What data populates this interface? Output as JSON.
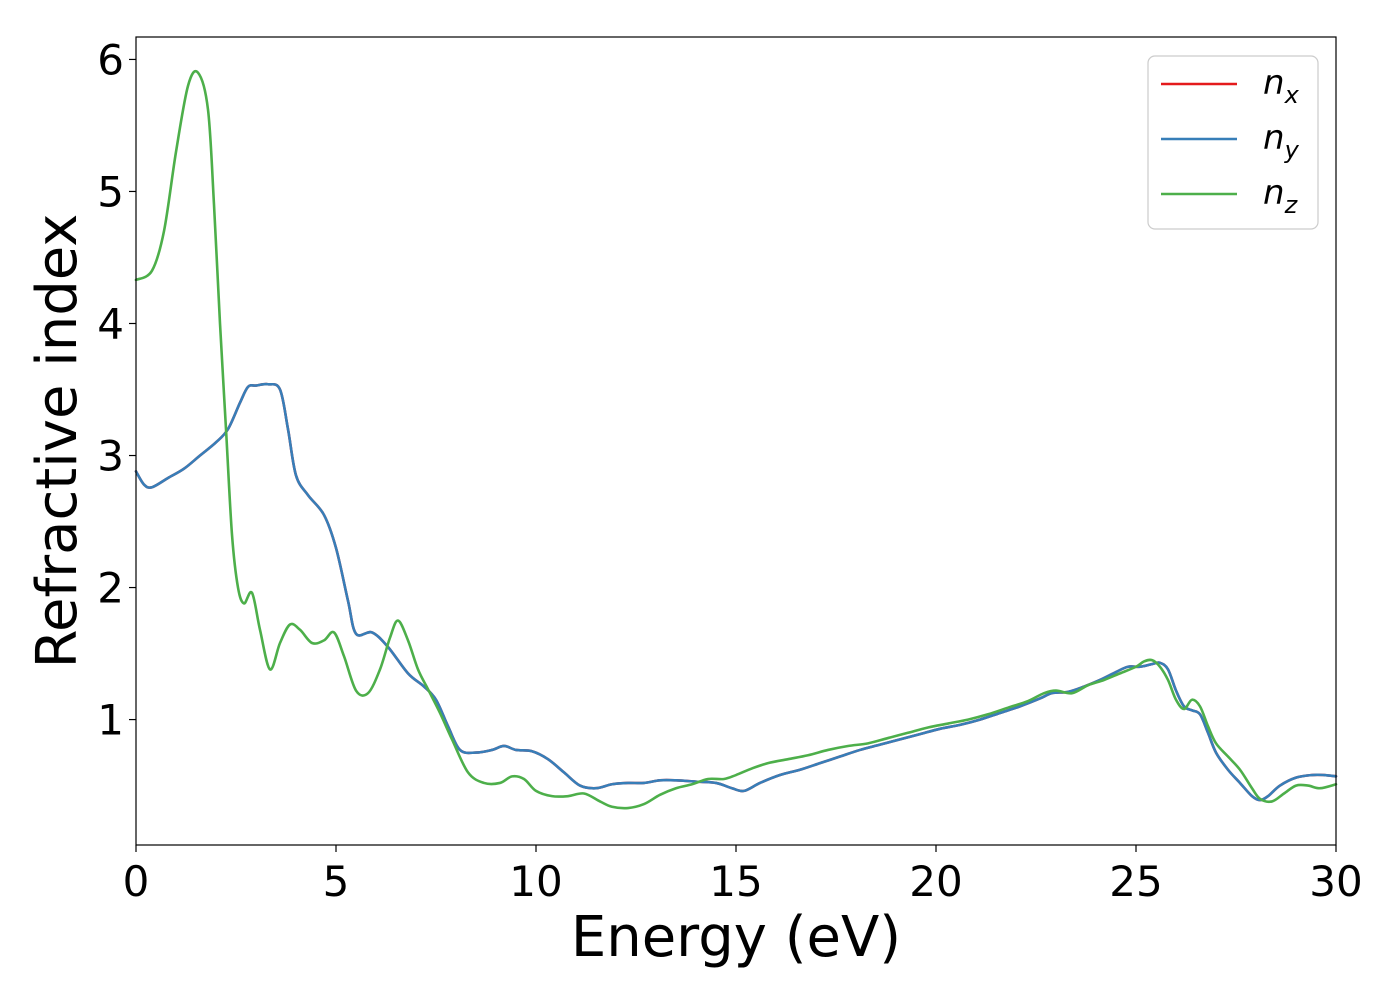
{
  "chart_data": {
    "type": "line",
    "title": "",
    "xlabel": "Energy (eV)",
    "ylabel": "Refractive index",
    "xlim": [
      0,
      30
    ],
    "ylim": [
      0.05,
      6.17
    ],
    "xticks": [
      0,
      5,
      10,
      15,
      20,
      25,
      30
    ],
    "yticks": [
      1,
      2,
      3,
      4,
      5,
      6
    ],
    "grid": false,
    "legend_position": "top-right",
    "series": [
      {
        "name": "n",
        "subscript": "x",
        "color": "#e41a1c",
        "x": [
          0,
          0.2,
          0.4,
          0.8,
          1.2,
          1.6,
          2.0,
          2.3,
          2.6,
          2.8,
          3.0,
          3.3,
          3.6,
          3.8,
          4.0,
          4.3,
          4.7,
          5.0,
          5.3,
          5.5,
          5.9,
          6.3,
          6.8,
          7.2,
          7.5,
          7.8,
          8.1,
          8.5,
          8.9,
          9.2,
          9.5,
          9.9,
          10.3,
          10.7,
          11.1,
          11.5,
          11.9,
          12.3,
          12.7,
          13.1,
          13.5,
          14.0,
          14.5,
          14.9,
          15.2,
          15.6,
          16.1,
          16.6,
          17.1,
          17.6,
          18.1,
          18.6,
          19.1,
          19.6,
          20.1,
          20.6,
          21.1,
          21.6,
          22.1,
          22.6,
          22.9,
          23.3,
          23.7,
          24.1,
          24.5,
          24.8,
          25.1,
          25.4,
          25.6,
          25.8,
          26.0,
          26.2,
          26.4,
          26.6,
          26.8,
          27.0,
          27.3,
          27.6,
          27.9,
          28.1,
          28.3,
          28.6,
          29.0,
          29.4,
          29.7,
          30.0
        ],
        "values": [
          2.88,
          2.78,
          2.76,
          2.83,
          2.9,
          3.0,
          3.1,
          3.2,
          3.4,
          3.52,
          3.53,
          3.54,
          3.5,
          3.2,
          2.85,
          2.7,
          2.55,
          2.3,
          1.9,
          1.65,
          1.66,
          1.55,
          1.35,
          1.25,
          1.15,
          0.95,
          0.77,
          0.75,
          0.77,
          0.8,
          0.77,
          0.76,
          0.7,
          0.6,
          0.5,
          0.48,
          0.51,
          0.52,
          0.52,
          0.54,
          0.54,
          0.53,
          0.52,
          0.48,
          0.46,
          0.52,
          0.58,
          0.62,
          0.67,
          0.72,
          0.77,
          0.81,
          0.85,
          0.89,
          0.93,
          0.96,
          1.0,
          1.05,
          1.1,
          1.16,
          1.2,
          1.21,
          1.25,
          1.3,
          1.36,
          1.4,
          1.4,
          1.42,
          1.43,
          1.38,
          1.22,
          1.1,
          1.07,
          1.04,
          0.9,
          0.75,
          0.62,
          0.52,
          0.42,
          0.39,
          0.42,
          0.5,
          0.56,
          0.58,
          0.58,
          0.57
        ]
      },
      {
        "name": "n",
        "subscript": "y",
        "color": "#377eb8",
        "x": [
          0,
          0.2,
          0.4,
          0.8,
          1.2,
          1.6,
          2.0,
          2.3,
          2.6,
          2.8,
          3.0,
          3.3,
          3.6,
          3.8,
          4.0,
          4.3,
          4.7,
          5.0,
          5.3,
          5.5,
          5.9,
          6.3,
          6.8,
          7.2,
          7.5,
          7.8,
          8.1,
          8.5,
          8.9,
          9.2,
          9.5,
          9.9,
          10.3,
          10.7,
          11.1,
          11.5,
          11.9,
          12.3,
          12.7,
          13.1,
          13.5,
          14.0,
          14.5,
          14.9,
          15.2,
          15.6,
          16.1,
          16.6,
          17.1,
          17.6,
          18.1,
          18.6,
          19.1,
          19.6,
          20.1,
          20.6,
          21.1,
          21.6,
          22.1,
          22.6,
          22.9,
          23.3,
          23.7,
          24.1,
          24.5,
          24.8,
          25.1,
          25.4,
          25.6,
          25.8,
          26.0,
          26.2,
          26.4,
          26.6,
          26.8,
          27.0,
          27.3,
          27.6,
          27.9,
          28.1,
          28.3,
          28.6,
          29.0,
          29.4,
          29.7,
          30.0
        ],
        "values": [
          2.88,
          2.78,
          2.76,
          2.83,
          2.9,
          3.0,
          3.1,
          3.2,
          3.4,
          3.52,
          3.53,
          3.54,
          3.5,
          3.2,
          2.85,
          2.7,
          2.55,
          2.3,
          1.9,
          1.65,
          1.66,
          1.55,
          1.35,
          1.25,
          1.15,
          0.95,
          0.77,
          0.75,
          0.77,
          0.8,
          0.77,
          0.76,
          0.7,
          0.6,
          0.5,
          0.48,
          0.51,
          0.52,
          0.52,
          0.54,
          0.54,
          0.53,
          0.52,
          0.48,
          0.46,
          0.52,
          0.58,
          0.62,
          0.67,
          0.72,
          0.77,
          0.81,
          0.85,
          0.89,
          0.93,
          0.96,
          1.0,
          1.05,
          1.1,
          1.16,
          1.2,
          1.21,
          1.25,
          1.3,
          1.36,
          1.4,
          1.4,
          1.42,
          1.43,
          1.38,
          1.22,
          1.1,
          1.07,
          1.04,
          0.9,
          0.75,
          0.62,
          0.52,
          0.42,
          0.39,
          0.42,
          0.5,
          0.56,
          0.58,
          0.58,
          0.57
        ]
      },
      {
        "name": "n",
        "subscript": "z",
        "color": "#4daf4a",
        "x": [
          0,
          0.4,
          0.7,
          1.0,
          1.3,
          1.55,
          1.8,
          1.95,
          2.1,
          2.25,
          2.4,
          2.55,
          2.7,
          2.9,
          3.1,
          3.35,
          3.6,
          3.85,
          4.1,
          4.4,
          4.7,
          4.95,
          5.2,
          5.5,
          5.8,
          6.1,
          6.35,
          6.55,
          6.8,
          7.05,
          7.3,
          7.6,
          7.9,
          8.3,
          8.7,
          9.1,
          9.4,
          9.7,
          10.0,
          10.4,
          10.8,
          11.2,
          11.6,
          11.9,
          12.3,
          12.7,
          13.1,
          13.5,
          13.9,
          14.3,
          14.7,
          15.0,
          15.4,
          15.8,
          16.3,
          16.8,
          17.3,
          17.8,
          18.3,
          18.8,
          19.3,
          19.8,
          20.3,
          20.8,
          21.3,
          21.8,
          22.3,
          22.7,
          23.0,
          23.4,
          23.8,
          24.2,
          24.6,
          25.0,
          25.2,
          25.4,
          25.6,
          25.8,
          26.0,
          26.2,
          26.4,
          26.6,
          26.8,
          27.0,
          27.3,
          27.6,
          27.9,
          28.1,
          28.4,
          28.7,
          29.0,
          29.3,
          29.6,
          30.0
        ],
        "values": [
          4.33,
          4.4,
          4.7,
          5.3,
          5.8,
          5.9,
          5.62,
          4.9,
          4.0,
          3.2,
          2.4,
          2.0,
          1.88,
          1.96,
          1.68,
          1.38,
          1.58,
          1.72,
          1.68,
          1.58,
          1.6,
          1.66,
          1.48,
          1.22,
          1.2,
          1.38,
          1.62,
          1.75,
          1.6,
          1.38,
          1.23,
          1.05,
          0.85,
          0.6,
          0.52,
          0.52,
          0.57,
          0.55,
          0.46,
          0.42,
          0.42,
          0.44,
          0.38,
          0.34,
          0.33,
          0.36,
          0.43,
          0.48,
          0.51,
          0.55,
          0.55,
          0.58,
          0.63,
          0.67,
          0.7,
          0.73,
          0.77,
          0.8,
          0.82,
          0.86,
          0.9,
          0.94,
          0.97,
          1.0,
          1.04,
          1.09,
          1.14,
          1.2,
          1.22,
          1.2,
          1.26,
          1.3,
          1.35,
          1.4,
          1.44,
          1.45,
          1.4,
          1.3,
          1.15,
          1.08,
          1.15,
          1.1,
          0.95,
          0.82,
          0.72,
          0.62,
          0.48,
          0.4,
          0.38,
          0.44,
          0.5,
          0.5,
          0.48,
          0.51
        ]
      }
    ]
  }
}
